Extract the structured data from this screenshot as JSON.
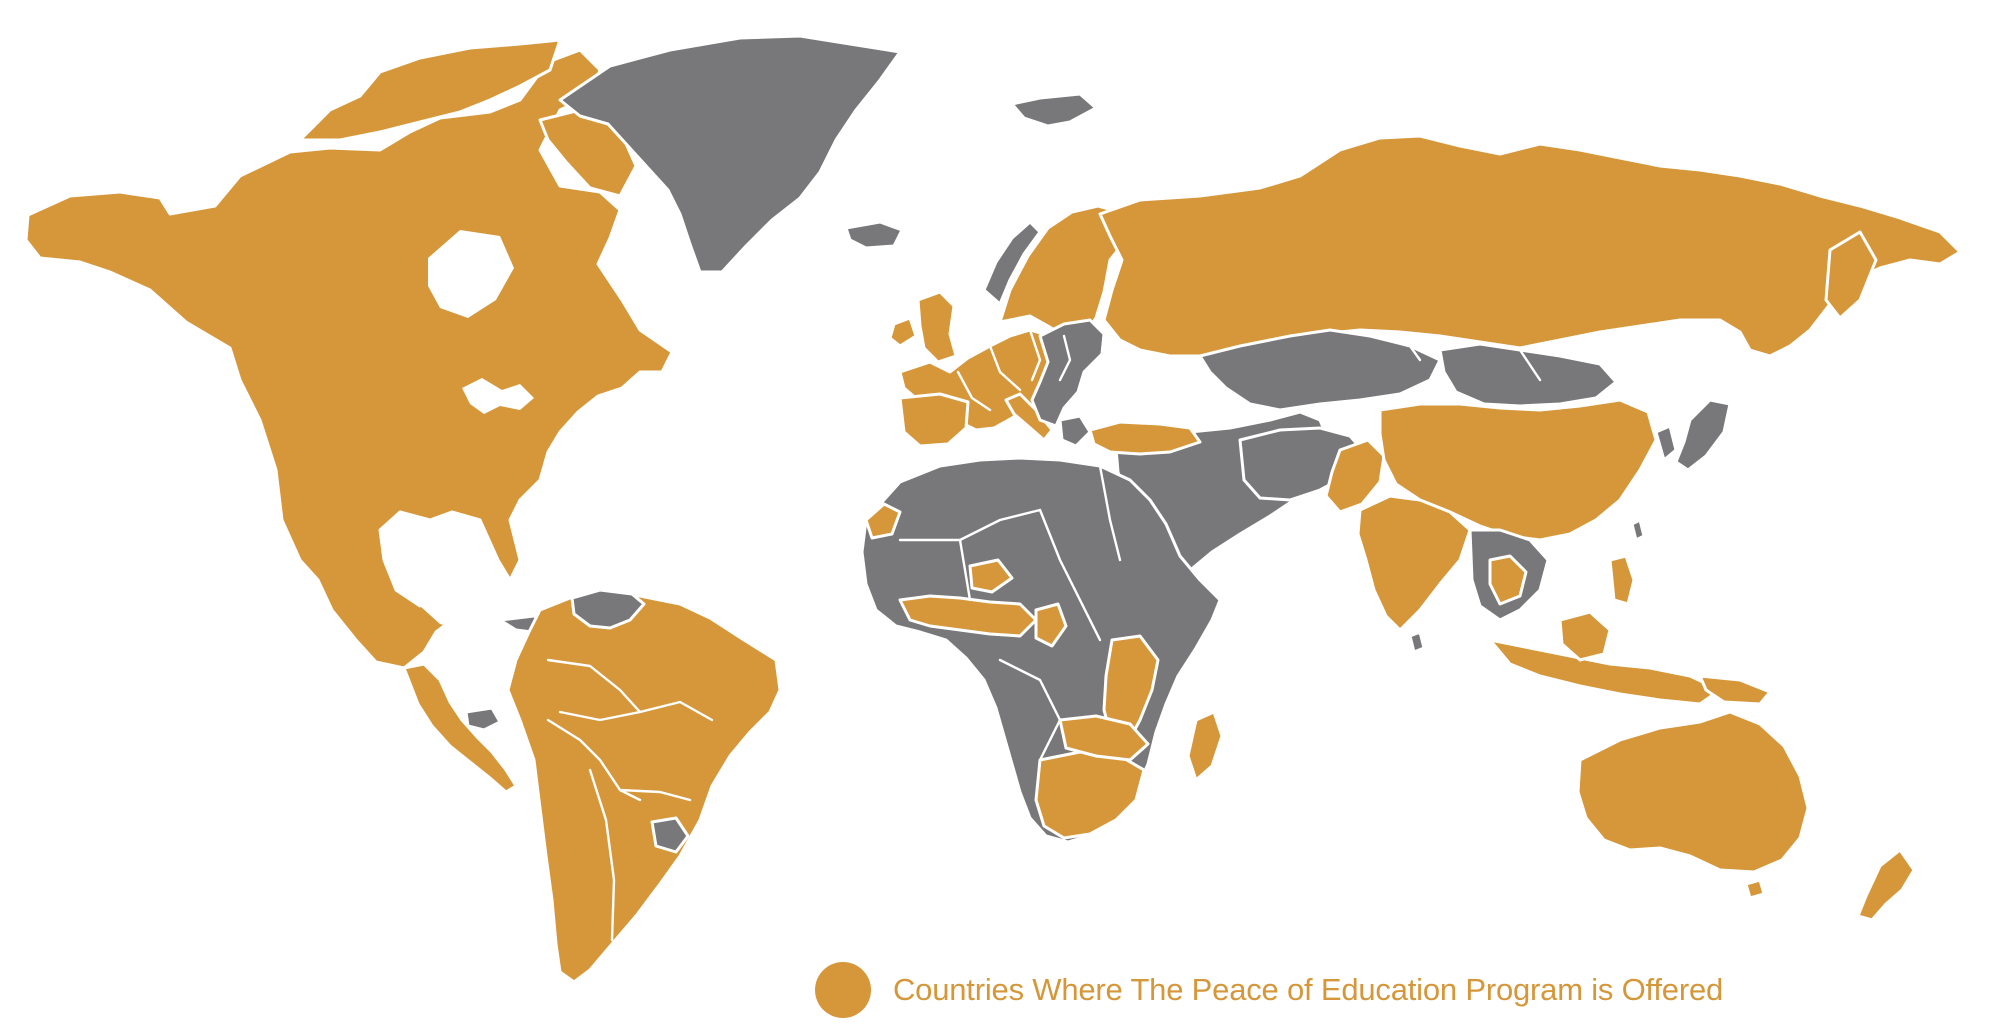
{
  "colors": {
    "offered": "#D6973A",
    "not_offered": "#78787A",
    "background": "#FFFFFF",
    "borders": "#FFFFFF"
  },
  "legend": {
    "swatch_color": "#D6973A",
    "label": "Countries Where The Peace of Education Program is Offered"
  },
  "map": {
    "offered_regions": [
      "Canada",
      "United States",
      "Mexico",
      "Guatemala",
      "Colombia",
      "Ecuador",
      "Peru",
      "Brazil",
      "Bolivia",
      "Chile",
      "Argentina",
      "Paraguay",
      "Guyana",
      "Suriname",
      "United Kingdom",
      "Ireland",
      "Iceland",
      "Norway",
      "Sweden",
      "Finland",
      "Spain",
      "Portugal",
      "France",
      "Italy",
      "Germany",
      "Ukraine",
      "Russia",
      "Turkey",
      "Georgia",
      "Lebanon",
      "Pakistan",
      "India",
      "Nepal",
      "China",
      "Mongolia",
      "Thailand",
      "Cambodia",
      "Malaysia",
      "Indonesia",
      "Philippines",
      "Papua New Guinea",
      "Australia",
      "New Zealand",
      "Ghana",
      "Nigeria",
      "Cameroon",
      "Burkina Faso",
      "Liberia",
      "Kenya",
      "Uganda",
      "Tanzania",
      "Zambia",
      "Zimbabwe",
      "Mozambique",
      "Botswana",
      "South Africa",
      "Madagascar",
      "Western Sahara",
      "Haiti"
    ],
    "not_offered_regions": [
      "Greenland",
      "Svalbard",
      "Venezuela",
      "Uruguay",
      "Cuba",
      "Honduras",
      "Poland",
      "Belarus",
      "Romania",
      "Balkans",
      "Greece",
      "Morocco",
      "Algeria",
      "Mali",
      "Niger",
      "Mauritania",
      "Chad",
      "Sudan",
      "Libya",
      "Egypt",
      "Ethiopia",
      "Somalia",
      "Democratic Republic of the Congo",
      "Angola",
      "Namibia",
      "Kazakhstan",
      "Uzbekistan",
      "Turkmenistan",
      "Afghanistan",
      "Iran",
      "Iraq",
      "Syria",
      "Saudi Arabia",
      "Yemen",
      "Oman",
      "Myanmar",
      "Laos",
      "Vietnam",
      "Japan",
      "Korea",
      "Sri Lanka",
      "Taiwan"
    ]
  }
}
